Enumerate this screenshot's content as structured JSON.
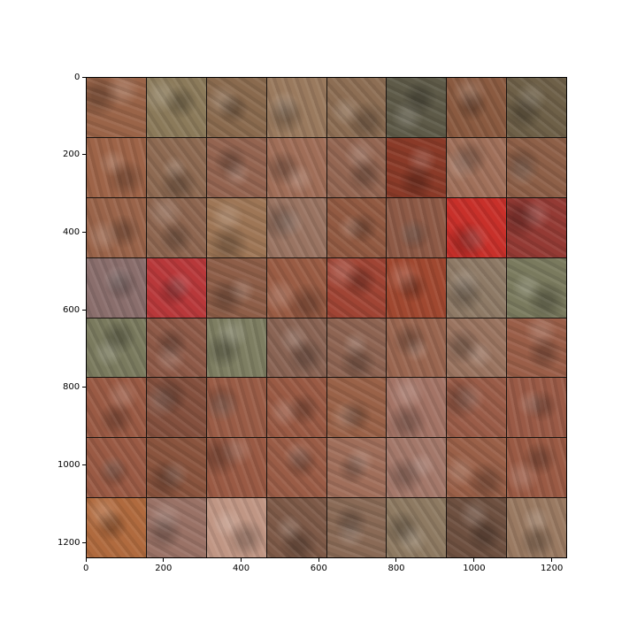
{
  "x_axis": {
    "ticks": [
      "0",
      "200",
      "400",
      "600",
      "800",
      "1000",
      "1200"
    ],
    "values": [
      0,
      200,
      400,
      600,
      800,
      1000,
      1200
    ],
    "max": 1240
  },
  "y_axis": {
    "ticks": [
      "0",
      "200",
      "400",
      "600",
      "800",
      "1000",
      "1200"
    ],
    "values": [
      0,
      200,
      400,
      600,
      800,
      1000,
      1200
    ],
    "max": 1240
  },
  "grid": {
    "rows": 8,
    "cols": 8
  },
  "tiles": [
    [
      "#9a6448",
      "#8b7a5a",
      "#8a6a4e",
      "#9a7a5e",
      "#8d6e54",
      "#5e5a48",
      "#8a5a40",
      "#6e6048"
    ],
    [
      "#9e6448",
      "#8e6a52",
      "#946450",
      "#a06e58",
      "#946652",
      "#8a3a28",
      "#a0705a",
      "#8e6048"
    ],
    [
      "#9a644a",
      "#8e6650",
      "#9e7656",
      "#9a7462",
      "#925a42",
      "#8e5a46",
      "#c8302a",
      "#943a34"
    ],
    [
      "#8a6e6c",
      "#b8383a",
      "#8e5e48",
      "#9a5c44",
      "#a04434",
      "#a04830",
      "#8e7a66",
      "#7a7a5e"
    ],
    [
      "#7a7a5e",
      "#8e5a48",
      "#7e7e62",
      "#8a6454",
      "#8e6452",
      "#9a6650",
      "#9a7460",
      "#9a5e48"
    ],
    [
      "#9a5a44",
      "#84503e",
      "#9a5c46",
      "#9a5a44",
      "#9a6248",
      "#a47466",
      "#9a5c48",
      "#9a5a46"
    ],
    [
      "#9a5a44",
      "#8a543e",
      "#9a5a44",
      "#9a5c46",
      "#a06e5a",
      "#a4786a",
      "#9a6048",
      "#9a5a44"
    ],
    [
      "#b06a3e",
      "#9a7266",
      "#c09684",
      "#7e5a48",
      "#8a6a56",
      "#8e7a62",
      "#6e5040",
      "#9a7a62"
    ]
  ]
}
